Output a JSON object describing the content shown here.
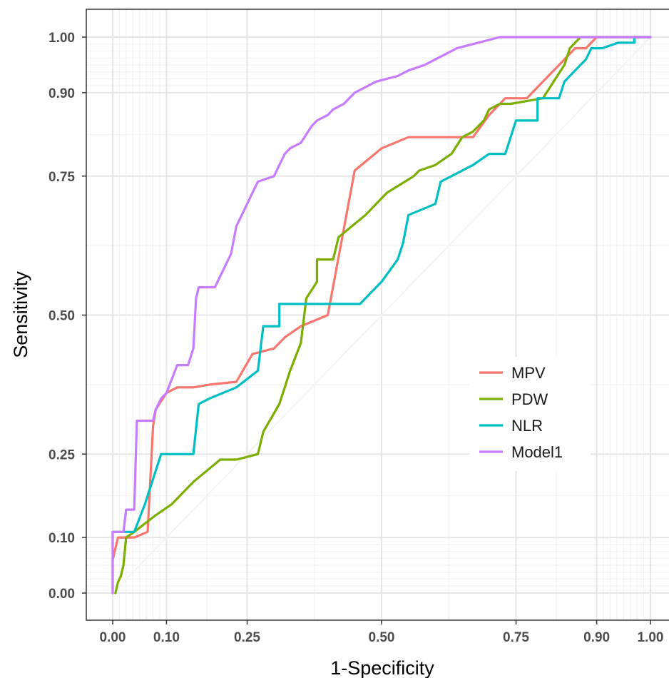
{
  "chart_data": {
    "type": "line",
    "xlabel": "1-Specificity",
    "ylabel": "Sensitivity",
    "xlim": [
      -0.05,
      1.03
    ],
    "ylim": [
      -0.05,
      1.05
    ],
    "x_ticks": [
      0.0,
      0.1,
      0.25,
      0.5,
      0.75,
      0.9,
      1.0
    ],
    "x_tick_labels": [
      "0.00",
      "0.10",
      "0.25",
      "0.50",
      "0.75",
      "0.90",
      "1.00"
    ],
    "y_ticks": [
      0.0,
      0.1,
      0.25,
      0.5,
      0.75,
      0.9,
      1.0
    ],
    "y_tick_labels": [
      "0.00",
      "0.10",
      "0.25",
      "0.50",
      "0.75",
      "0.90",
      "1.00"
    ],
    "grid": true,
    "legend_position": "right",
    "series": [
      {
        "name": "MPV",
        "color": "#F8766D",
        "points": [
          [
            0,
            0.06
          ],
          [
            0.01,
            0.1
          ],
          [
            0.04,
            0.1
          ],
          [
            0.065,
            0.11
          ],
          [
            0.075,
            0.3
          ],
          [
            0.08,
            0.33
          ],
          [
            0.1,
            0.36
          ],
          [
            0.12,
            0.37
          ],
          [
            0.15,
            0.37
          ],
          [
            0.18,
            0.375
          ],
          [
            0.23,
            0.38
          ],
          [
            0.26,
            0.43
          ],
          [
            0.3,
            0.44
          ],
          [
            0.32,
            0.46
          ],
          [
            0.35,
            0.48
          ],
          [
            0.4,
            0.5
          ],
          [
            0.45,
            0.76
          ],
          [
            0.5,
            0.8
          ],
          [
            0.55,
            0.82
          ],
          [
            0.6,
            0.82
          ],
          [
            0.67,
            0.82
          ],
          [
            0.7,
            0.86
          ],
          [
            0.73,
            0.89
          ],
          [
            0.77,
            0.89
          ],
          [
            0.84,
            0.96
          ],
          [
            0.86,
            0.98
          ],
          [
            0.88,
            0.98
          ],
          [
            0.9,
            1.0
          ],
          [
            1.0,
            1.0
          ]
        ]
      },
      {
        "name": "PDW",
        "color": "#7CAE00",
        "points": [
          [
            0.005,
            0.0
          ],
          [
            0.01,
            0.02
          ],
          [
            0.015,
            0.03
          ],
          [
            0.02,
            0.05
          ],
          [
            0.025,
            0.1
          ],
          [
            0.04,
            0.11
          ],
          [
            0.08,
            0.14
          ],
          [
            0.11,
            0.16
          ],
          [
            0.15,
            0.2
          ],
          [
            0.2,
            0.24
          ],
          [
            0.23,
            0.24
          ],
          [
            0.27,
            0.25
          ],
          [
            0.28,
            0.29
          ],
          [
            0.31,
            0.34
          ],
          [
            0.33,
            0.4
          ],
          [
            0.35,
            0.45
          ],
          [
            0.36,
            0.53
          ],
          [
            0.38,
            0.56
          ],
          [
            0.38,
            0.6
          ],
          [
            0.41,
            0.6
          ],
          [
            0.42,
            0.64
          ],
          [
            0.47,
            0.68
          ],
          [
            0.51,
            0.72
          ],
          [
            0.56,
            0.75
          ],
          [
            0.57,
            0.76
          ],
          [
            0.6,
            0.77
          ],
          [
            0.63,
            0.79
          ],
          [
            0.65,
            0.82
          ],
          [
            0.67,
            0.83
          ],
          [
            0.69,
            0.85
          ],
          [
            0.7,
            0.87
          ],
          [
            0.72,
            0.88
          ],
          [
            0.74,
            0.88
          ],
          [
            0.8,
            0.89
          ],
          [
            0.82,
            0.92
          ],
          [
            0.84,
            0.95
          ],
          [
            0.85,
            0.98
          ],
          [
            0.87,
            1.0
          ],
          [
            1.0,
            1.0
          ]
        ]
      },
      {
        "name": "NLR",
        "color": "#00BFC4",
        "points": [
          [
            0.0,
            0.11
          ],
          [
            0.04,
            0.11
          ],
          [
            0.06,
            0.16
          ],
          [
            0.09,
            0.25
          ],
          [
            0.15,
            0.25
          ],
          [
            0.16,
            0.34
          ],
          [
            0.18,
            0.35
          ],
          [
            0.23,
            0.37
          ],
          [
            0.27,
            0.4
          ],
          [
            0.28,
            0.48
          ],
          [
            0.31,
            0.48
          ],
          [
            0.31,
            0.52
          ],
          [
            0.46,
            0.52
          ],
          [
            0.48,
            0.54
          ],
          [
            0.5,
            0.56
          ],
          [
            0.53,
            0.6
          ],
          [
            0.54,
            0.63
          ],
          [
            0.55,
            0.68
          ],
          [
            0.6,
            0.7
          ],
          [
            0.61,
            0.74
          ],
          [
            0.63,
            0.75
          ],
          [
            0.67,
            0.77
          ],
          [
            0.7,
            0.79
          ],
          [
            0.73,
            0.79
          ],
          [
            0.75,
            0.85
          ],
          [
            0.79,
            0.85
          ],
          [
            0.79,
            0.89
          ],
          [
            0.83,
            0.89
          ],
          [
            0.84,
            0.92
          ],
          [
            0.86,
            0.94
          ],
          [
            0.88,
            0.96
          ],
          [
            0.89,
            0.98
          ],
          [
            0.91,
            0.98
          ],
          [
            0.94,
            0.99
          ],
          [
            0.97,
            0.99
          ],
          [
            0.97,
            1.0
          ],
          [
            1.0,
            1.0
          ]
        ]
      },
      {
        "name": "Model1",
        "color": "#C77CFF",
        "points": [
          [
            0.0,
            0.0
          ],
          [
            0.0,
            0.11
          ],
          [
            0.02,
            0.11
          ],
          [
            0.025,
            0.15
          ],
          [
            0.04,
            0.15
          ],
          [
            0.045,
            0.31
          ],
          [
            0.075,
            0.31
          ],
          [
            0.08,
            0.33
          ],
          [
            0.09,
            0.35
          ],
          [
            0.1,
            0.36
          ],
          [
            0.12,
            0.41
          ],
          [
            0.14,
            0.41
          ],
          [
            0.15,
            0.44
          ],
          [
            0.155,
            0.53
          ],
          [
            0.16,
            0.55
          ],
          [
            0.19,
            0.55
          ],
          [
            0.2,
            0.57
          ],
          [
            0.21,
            0.59
          ],
          [
            0.22,
            0.61
          ],
          [
            0.23,
            0.66
          ],
          [
            0.24,
            0.68
          ],
          [
            0.25,
            0.7
          ],
          [
            0.26,
            0.72
          ],
          [
            0.27,
            0.74
          ],
          [
            0.3,
            0.75
          ],
          [
            0.31,
            0.77
          ],
          [
            0.32,
            0.79
          ],
          [
            0.33,
            0.8
          ],
          [
            0.35,
            0.81
          ],
          [
            0.37,
            0.84
          ],
          [
            0.38,
            0.85
          ],
          [
            0.4,
            0.86
          ],
          [
            0.41,
            0.87
          ],
          [
            0.43,
            0.88
          ],
          [
            0.45,
            0.9
          ],
          [
            0.47,
            0.91
          ],
          [
            0.49,
            0.92
          ],
          [
            0.53,
            0.93
          ],
          [
            0.55,
            0.94
          ],
          [
            0.58,
            0.95
          ],
          [
            0.6,
            0.96
          ],
          [
            0.62,
            0.97
          ],
          [
            0.64,
            0.98
          ],
          [
            0.68,
            0.99
          ],
          [
            0.72,
            1.0
          ],
          [
            1.0,
            1.0
          ]
        ]
      }
    ]
  }
}
